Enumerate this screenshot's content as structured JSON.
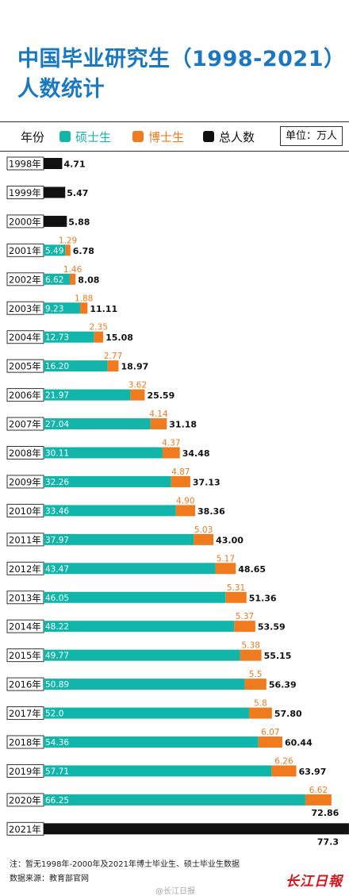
{
  "header": {
    "title_line1": "中国毕业研究生（1998-2021）",
    "title_line2": "人数统计"
  },
  "legend": {
    "year_label": "年份",
    "items": [
      {
        "label": "硕士生",
        "color": "#12b5a9"
      },
      {
        "label": "博士生",
        "color": "#f07a1e"
      },
      {
        "label": "总人数",
        "color": "#111111"
      }
    ],
    "unit": "单位：万人"
  },
  "chart_data": {
    "type": "bar",
    "orientation": "horizontal",
    "stacked": true,
    "unit": "万人",
    "categories": [
      "1998年",
      "1999年",
      "2000年",
      "2001年",
      "2002年",
      "2003年",
      "2004年",
      "2005年",
      "2006年",
      "2007年",
      "2008年",
      "2009年",
      "2010年",
      "2011年",
      "2012年",
      "2013年",
      "2014年",
      "2015年",
      "2016年",
      "2017年",
      "2018年",
      "2019年",
      "2020年",
      "2021年"
    ],
    "series": [
      {
        "name": "硕士生",
        "color": "#12b5a9",
        "labels": [
          null,
          null,
          null,
          "5.49",
          "6.62",
          "9.23",
          "12.73",
          "16.20",
          "21.97",
          "27.04",
          "30.11",
          "32.26",
          "33.46",
          "37.97",
          "43.47",
          "46.05",
          "48.22",
          "49.77",
          "50.89",
          "52.0",
          "54.36",
          "57.71",
          "66.25",
          null
        ],
        "values": [
          null,
          null,
          null,
          5.49,
          6.62,
          9.23,
          12.73,
          16.2,
          21.97,
          27.04,
          30.11,
          32.26,
          33.46,
          37.97,
          43.47,
          46.05,
          48.22,
          49.77,
          50.89,
          52.0,
          54.36,
          57.71,
          66.25,
          null
        ]
      },
      {
        "name": "博士生",
        "color": "#f07a1e",
        "labels": [
          null,
          null,
          null,
          "1.29",
          "1.46",
          "1.88",
          "2.35",
          "2.77",
          "3.62",
          "4.14",
          "4.37",
          "4.87",
          "4.90",
          "5.03",
          "5.17",
          "5.31",
          "5.37",
          "5.38",
          "5.5",
          "5.8",
          "6.07",
          "6.26",
          "6.62",
          null
        ],
        "values": [
          null,
          null,
          null,
          1.29,
          1.46,
          1.88,
          2.35,
          2.77,
          3.62,
          4.14,
          4.37,
          4.87,
          4.9,
          5.03,
          5.17,
          5.31,
          5.37,
          5.38,
          5.5,
          5.8,
          6.07,
          6.26,
          6.62,
          null
        ]
      },
      {
        "name": "总人数",
        "color": "#111111",
        "labels": [
          "4.71",
          "5.47",
          "5.88",
          "6.78",
          "8.08",
          "11.11",
          "15.08",
          "18.97",
          "25.59",
          "31.18",
          "34.48",
          "37.13",
          "38.36",
          "43.00",
          "48.65",
          "51.36",
          "53.59",
          "55.15",
          "56.39",
          "57.80",
          "60.44",
          "63.97",
          "72.86",
          "77.3"
        ],
        "values": [
          4.71,
          5.47,
          5.88,
          6.78,
          8.08,
          11.11,
          15.08,
          18.97,
          25.59,
          31.18,
          34.48,
          37.13,
          38.36,
          43.0,
          48.65,
          51.36,
          53.59,
          55.15,
          56.39,
          57.8,
          60.44,
          63.97,
          72.86,
          77.3
        ]
      }
    ],
    "title": "",
    "xlabel": "",
    "ylabel": ""
  },
  "footer": {
    "note": "注：暂无1998年-2000年及2021年博士毕业生、硕士毕业生数据",
    "source": "数据来源：教育部官网",
    "watermark": "@长江日报",
    "logo": "长江日報"
  }
}
